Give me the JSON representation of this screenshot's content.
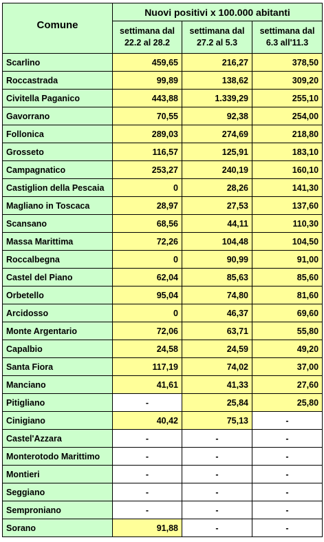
{
  "header": {
    "comune_label": "Comune",
    "title": "Nuovi positivi x 100.000 abitanti",
    "weeks": [
      [
        "settimana dal",
        "22.2 al 28.2"
      ],
      [
        "settimana dal",
        "27.2 al 5.3"
      ],
      [
        "settimana dal",
        "6.3 all'11.3"
      ]
    ]
  },
  "rows": [
    {
      "comune": "Scarlino",
      "v": [
        "459,65",
        "216,27",
        "378,50"
      ],
      "bg": [
        "y",
        "y",
        "y"
      ]
    },
    {
      "comune": "Roccastrada",
      "v": [
        "99,89",
        "138,62",
        "309,20"
      ],
      "bg": [
        "y",
        "y",
        "y"
      ]
    },
    {
      "comune": "Civitella Paganico",
      "v": [
        "443,88",
        "1.339,29",
        "255,10"
      ],
      "bg": [
        "y",
        "y",
        "y"
      ]
    },
    {
      "comune": "Gavorrano",
      "v": [
        "70,55",
        "92,38",
        "254,00"
      ],
      "bg": [
        "y",
        "y",
        "y"
      ]
    },
    {
      "comune": "Follonica",
      "v": [
        "289,03",
        "274,69",
        "218,80"
      ],
      "bg": [
        "y",
        "y",
        "y"
      ]
    },
    {
      "comune": "Grosseto",
      "v": [
        "116,57",
        "125,91",
        "183,10"
      ],
      "bg": [
        "y",
        "y",
        "y"
      ]
    },
    {
      "comune": "Campagnatico",
      "v": [
        "253,27",
        "240,19",
        "160,10"
      ],
      "bg": [
        "y",
        "y",
        "y"
      ]
    },
    {
      "comune": "Castiglion della Pescaia",
      "v": [
        "0",
        "28,26",
        "141,30"
      ],
      "bg": [
        "y",
        "y",
        "y"
      ]
    },
    {
      "comune": "Magliano in Toscaca",
      "v": [
        "28,97",
        "27,53",
        "137,60"
      ],
      "bg": [
        "y",
        "y",
        "y"
      ]
    },
    {
      "comune": "Scansano",
      "v": [
        "68,56",
        "44,11",
        "110,30"
      ],
      "bg": [
        "y",
        "y",
        "y"
      ]
    },
    {
      "comune": "Massa Marittima",
      "v": [
        "72,26",
        "104,48",
        "104,50"
      ],
      "bg": [
        "y",
        "y",
        "y"
      ]
    },
    {
      "comune": "Roccalbegna",
      "v": [
        "0",
        "90,99",
        "91,00"
      ],
      "bg": [
        "y",
        "y",
        "y"
      ]
    },
    {
      "comune": "Castel del Piano",
      "v": [
        "62,04",
        "85,63",
        "85,60"
      ],
      "bg": [
        "y",
        "y",
        "y"
      ]
    },
    {
      "comune": "Orbetello",
      "v": [
        "95,04",
        "74,80",
        "81,60"
      ],
      "bg": [
        "y",
        "y",
        "y"
      ]
    },
    {
      "comune": "Arcidosso",
      "v": [
        "0",
        "46,37",
        "69,60"
      ],
      "bg": [
        "y",
        "y",
        "y"
      ]
    },
    {
      "comune": "Monte Argentario",
      "v": [
        "72,06",
        "63,71",
        "55,80"
      ],
      "bg": [
        "y",
        "y",
        "y"
      ]
    },
    {
      "comune": "Capalbio",
      "v": [
        "24,58",
        "24,59",
        "49,20"
      ],
      "bg": [
        "y",
        "y",
        "y"
      ]
    },
    {
      "comune": "Santa Fiora",
      "v": [
        "117,19",
        "74,02",
        "37,00"
      ],
      "bg": [
        "y",
        "y",
        "y"
      ]
    },
    {
      "comune": "Manciano",
      "v": [
        "41,61",
        "41,33",
        "27,60"
      ],
      "bg": [
        "y",
        "y",
        "y"
      ]
    },
    {
      "comune": "Pitigliano",
      "v": [
        "-",
        "25,84",
        "25,80"
      ],
      "bg": [
        "w",
        "y",
        "y"
      ]
    },
    {
      "comune": "Cinigiano",
      "v": [
        "40,42",
        "75,13",
        "-"
      ],
      "bg": [
        "y",
        "y",
        "w"
      ]
    },
    {
      "comune": "Castel'Azzara",
      "v": [
        "-",
        "-",
        "-"
      ],
      "bg": [
        "w",
        "w",
        "w"
      ]
    },
    {
      "comune": "Monterotodo Marittimo",
      "v": [
        "-",
        "-",
        "-"
      ],
      "bg": [
        "w",
        "w",
        "w"
      ]
    },
    {
      "comune": "Montieri",
      "v": [
        "-",
        "-",
        "-"
      ],
      "bg": [
        "w",
        "w",
        "w"
      ]
    },
    {
      "comune": "Seggiano",
      "v": [
        "-",
        "-",
        "-"
      ],
      "bg": [
        "w",
        "w",
        "w"
      ]
    },
    {
      "comune": "Semproniano",
      "v": [
        "-",
        "-",
        "-"
      ],
      "bg": [
        "w",
        "w",
        "w"
      ]
    },
    {
      "comune": "Sorano",
      "v": [
        "91,88",
        "-",
        "-"
      ],
      "bg": [
        "y",
        "w",
        "w"
      ]
    }
  ],
  "colors": {
    "name_bg": "#ccffcc",
    "value_bg": "#ffff99",
    "empty_bg": "#ffffff",
    "border": "#000000"
  }
}
